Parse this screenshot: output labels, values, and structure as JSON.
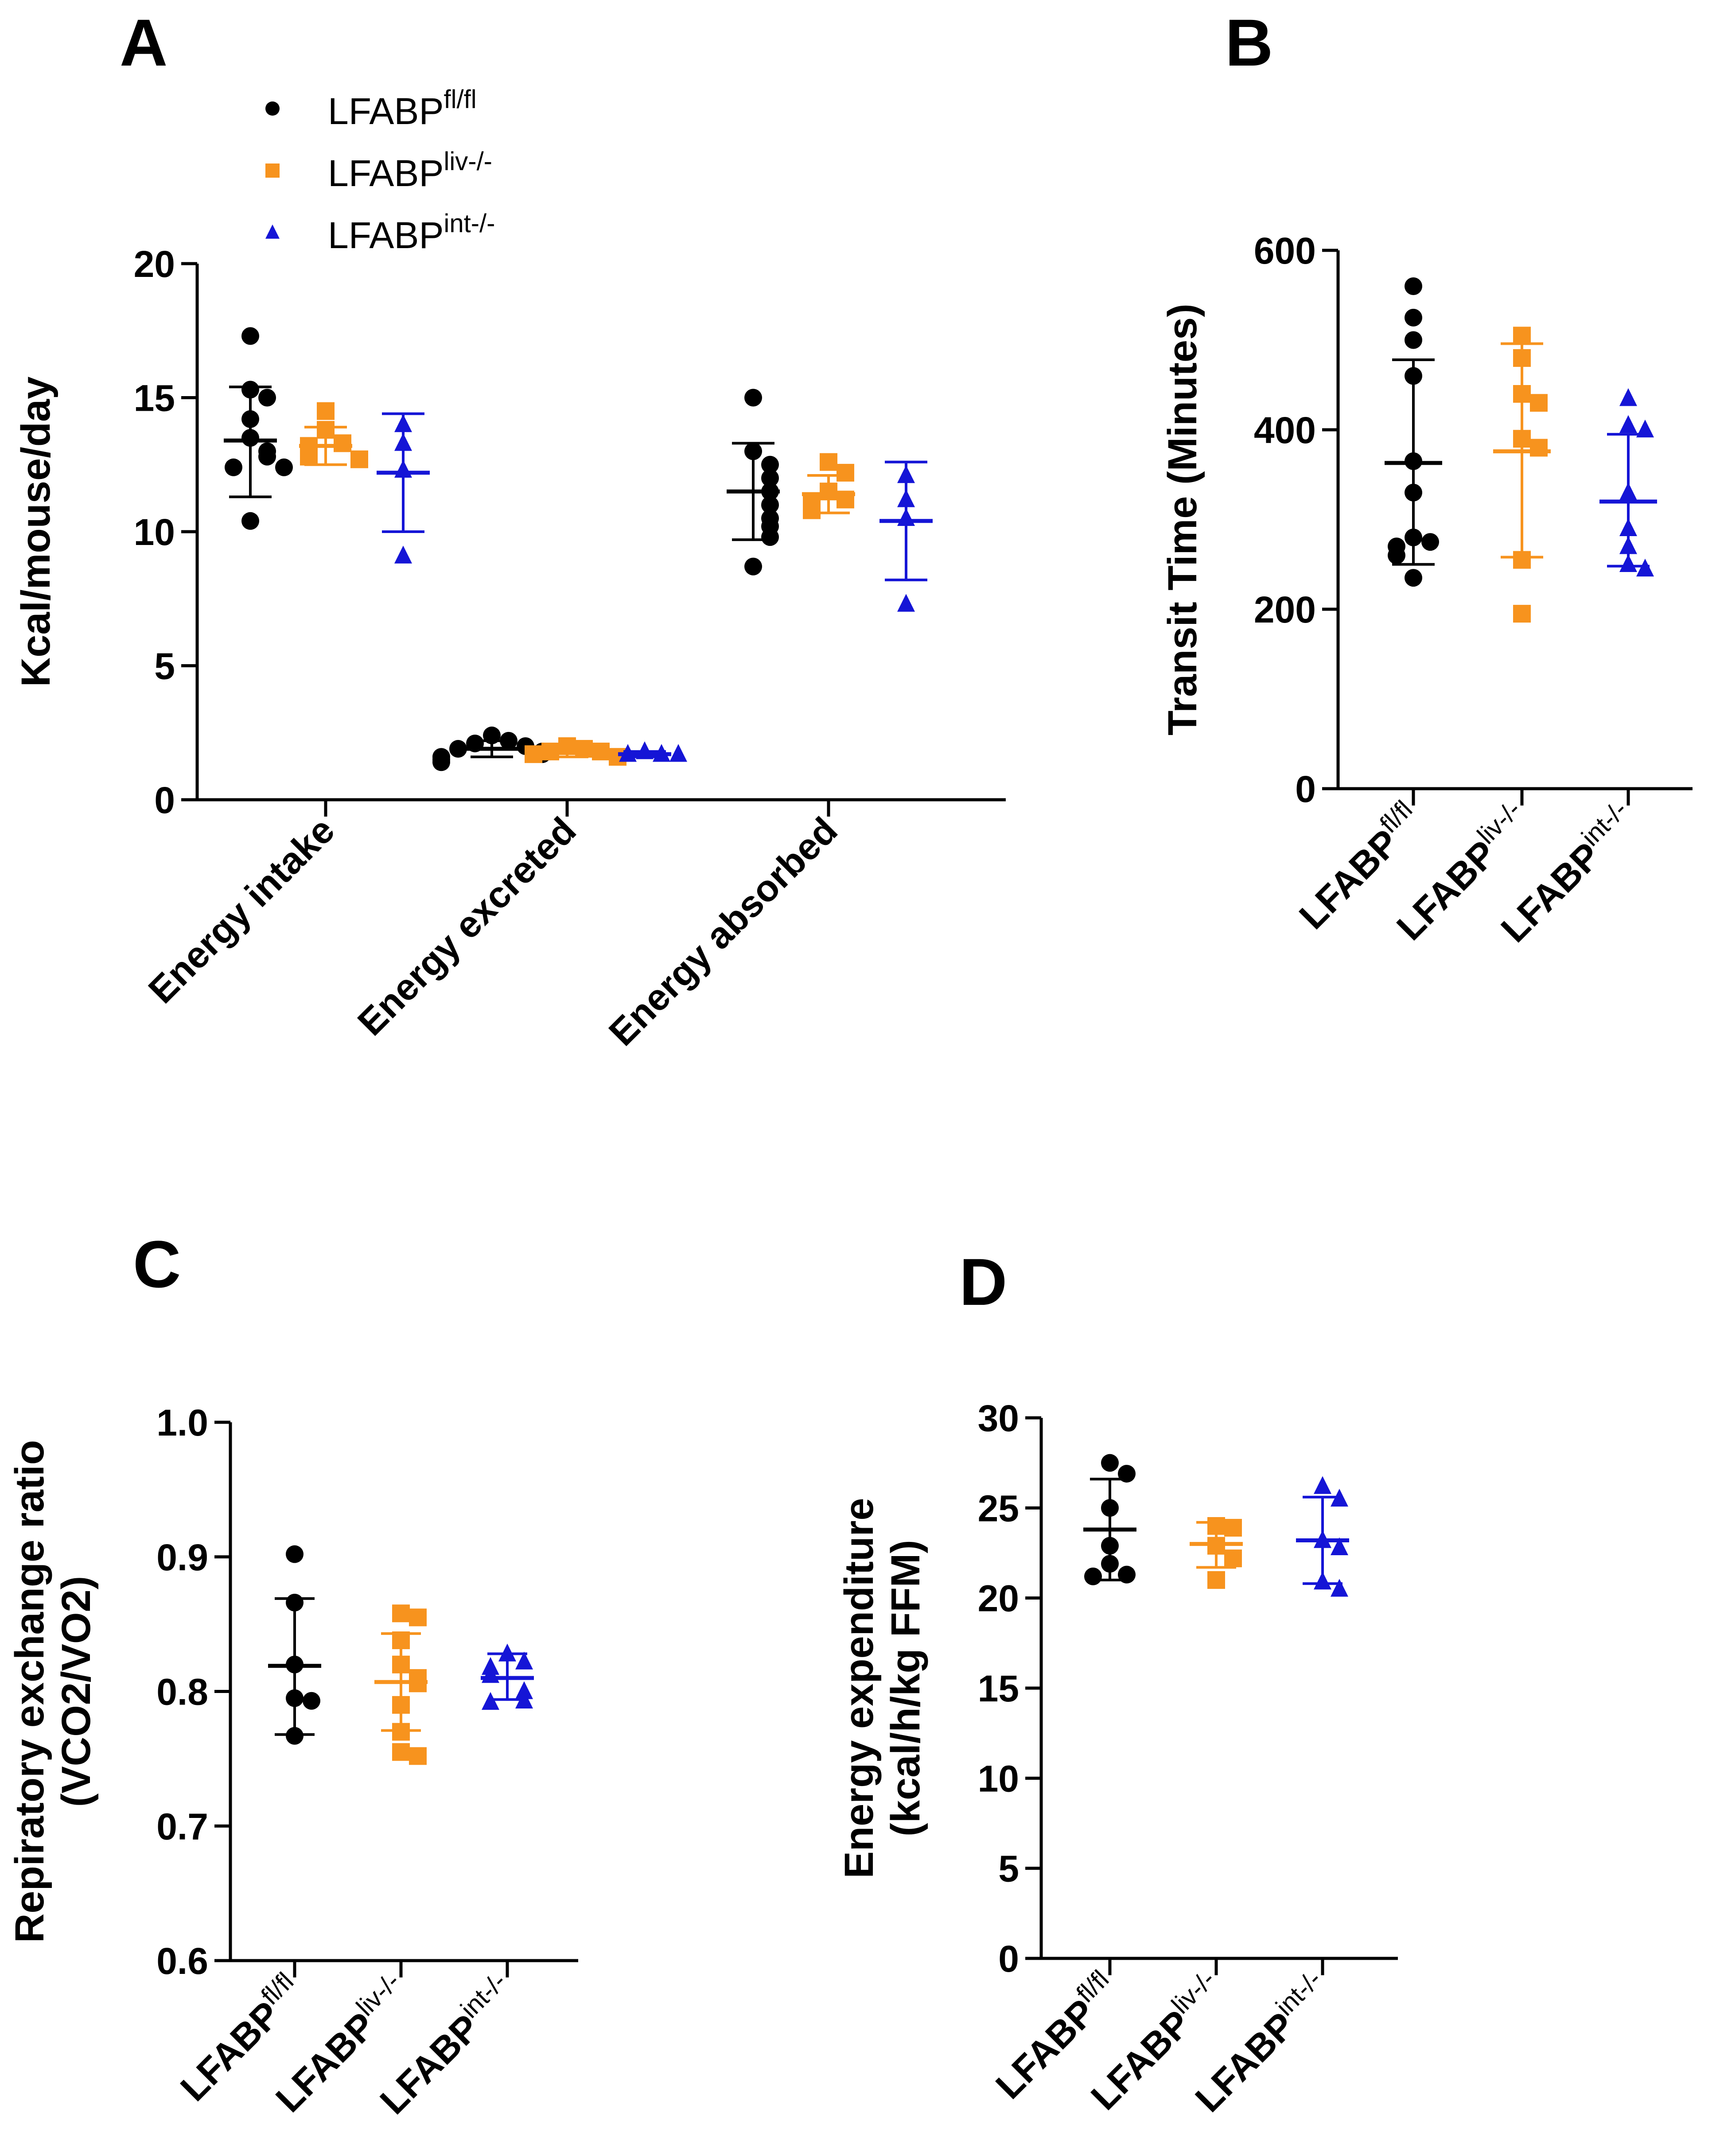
{
  "colors": {
    "fl": "#000000",
    "liv": "#F7931E",
    "int": "#1515D6",
    "axis": "#000000"
  },
  "legend": {
    "items": [
      {
        "key": "fl",
        "base": "LFABP",
        "sup": "fl/fl",
        "marker": "circle"
      },
      {
        "key": "liv",
        "base": "LFABP",
        "sup": "liv-/-",
        "marker": "square"
      },
      {
        "key": "int",
        "base": "LFABP",
        "sup": "int-/-",
        "marker": "triangle"
      }
    ]
  },
  "chart_data": [
    {
      "panel": "A",
      "type": "scatter",
      "ylabel": "Kcal/mouse/day",
      "ylim": [
        0,
        20
      ],
      "yticks": [
        0,
        5,
        10,
        15,
        20
      ],
      "categories": [
        "Energy intake",
        "Energy excreted",
        "Energy absorbed"
      ],
      "groups": [
        {
          "category": "Energy intake",
          "series": "fl",
          "mean": 13.4,
          "sd_low": 11.3,
          "sd_high": 15.4,
          "points": [
            17.3,
            15.3,
            15.0,
            14.2,
            13.5,
            13.0,
            12.8,
            12.4,
            12.4,
            10.4
          ]
        },
        {
          "category": "Energy intake",
          "series": "liv",
          "mean": 13.2,
          "sd_low": 12.5,
          "sd_high": 13.9,
          "points": [
            14.5,
            13.8,
            13.3,
            13.2,
            12.8,
            12.7
          ]
        },
        {
          "category": "Energy intake",
          "series": "int",
          "mean": 12.2,
          "sd_low": 10.0,
          "sd_high": 14.4,
          "points": [
            14.0,
            13.3,
            12.3,
            9.1
          ]
        },
        {
          "category": "Energy excreted",
          "series": "fl",
          "mean": 1.9,
          "sd_low": 1.6,
          "sd_high": 2.2,
          "points": [
            2.4,
            2.2,
            2.1,
            2.0,
            1.9,
            1.8,
            1.7,
            1.6,
            1.5,
            1.4
          ]
        },
        {
          "category": "Energy excreted",
          "series": "liv",
          "mean": 1.8,
          "sd_low": 1.6,
          "sd_high": 2.0,
          "points": [
            2.0,
            1.9,
            1.8,
            1.8,
            1.7,
            1.6
          ]
        },
        {
          "category": "Energy excreted",
          "series": "int",
          "mean": 1.7,
          "sd_low": 1.6,
          "sd_high": 1.8,
          "points": [
            1.8,
            1.7,
            1.7,
            1.7
          ]
        },
        {
          "category": "Energy absorbed",
          "series": "fl",
          "mean": 11.5,
          "sd_low": 9.7,
          "sd_high": 13.3,
          "points": [
            15.0,
            13.0,
            12.5,
            12.0,
            11.5,
            11.0,
            10.5,
            10.2,
            9.8,
            8.7
          ]
        },
        {
          "category": "Energy absorbed",
          "series": "liv",
          "mean": 11.4,
          "sd_low": 10.7,
          "sd_high": 12.1,
          "points": [
            12.6,
            12.2,
            11.5,
            11.2,
            11.0,
            10.8
          ]
        },
        {
          "category": "Energy absorbed",
          "series": "int",
          "mean": 10.4,
          "sd_low": 8.2,
          "sd_high": 12.6,
          "points": [
            12.1,
            11.2,
            10.5,
            7.3
          ]
        }
      ]
    },
    {
      "panel": "B",
      "type": "scatter",
      "ylabel": "Transit Time  (Minutes)",
      "ylim": [
        0,
        600
      ],
      "yticks": [
        0,
        200,
        400,
        600
      ],
      "categories": [
        "LFABP fl/fl",
        "LFABP liv-/-",
        "LFABP int-/-"
      ],
      "groups": [
        {
          "series": "fl",
          "mean": 363,
          "sd_low": 250,
          "sd_high": 478,
          "points": [
            560,
            525,
            500,
            460,
            365,
            330,
            280,
            275,
            270,
            260,
            235
          ]
        },
        {
          "series": "liv",
          "mean": 376,
          "sd_low": 258,
          "sd_high": 496,
          "points": [
            505,
            480,
            440,
            430,
            390,
            380,
            255,
            195
          ]
        },
        {
          "series": "int",
          "mean": 320,
          "sd_low": 248,
          "sd_high": 395,
          "points": [
            435,
            405,
            400,
            330,
            290,
            270,
            250,
            245
          ]
        }
      ]
    },
    {
      "panel": "C",
      "type": "scatter",
      "ylabel": [
        "Repiratory exchange ratio",
        "(VCO2/VO2)"
      ],
      "ylim": [
        0.6,
        1.0
      ],
      "yticks": [
        "0.6",
        "0.7",
        "0.8",
        "0.9",
        "1.0"
      ],
      "categories": [
        "LFABP fl/fl",
        "LFABP liv-/-",
        "LFABP int-/-"
      ],
      "groups": [
        {
          "series": "fl",
          "mean": 0.819,
          "sd_low": 0.768,
          "sd_high": 0.869,
          "points": [
            0.902,
            0.866,
            0.82,
            0.795,
            0.793,
            0.767
          ]
        },
        {
          "series": "liv",
          "mean": 0.807,
          "sd_low": 0.771,
          "sd_high": 0.843,
          "points": [
            0.858,
            0.855,
            0.838,
            0.82,
            0.81,
            0.806,
            0.79,
            0.77,
            0.755,
            0.752
          ]
        },
        {
          "series": "int",
          "mean": 0.81,
          "sd_low": 0.794,
          "sd_high": 0.828,
          "points": [
            0.828,
            0.822,
            0.818,
            0.812,
            0.8,
            0.793,
            0.792
          ]
        }
      ]
    },
    {
      "panel": "D",
      "type": "scatter",
      "ylabel": [
        "Energy expenditure",
        "(kcal/h/kg FFM)"
      ],
      "ylim": [
        0,
        30
      ],
      "yticks": [
        0,
        5,
        10,
        15,
        20,
        25,
        30
      ],
      "categories": [
        "LFABP fl/fl",
        "LFABP liv-/-",
        "LFABP int-/-"
      ],
      "groups": [
        {
          "series": "fl",
          "mean": 23.8,
          "sd_low": 21.0,
          "sd_high": 26.6,
          "points": [
            27.5,
            26.9,
            25.0,
            22.9,
            21.9,
            21.3,
            21.2
          ]
        },
        {
          "series": "liv",
          "mean": 23.0,
          "sd_low": 21.7,
          "sd_high": 24.2,
          "points": [
            24.0,
            23.9,
            22.9,
            22.2,
            21.0
          ]
        },
        {
          "series": "int",
          "mean": 23.2,
          "sd_low": 20.8,
          "sd_high": 25.6,
          "points": [
            26.2,
            25.5,
            23.2,
            22.8,
            20.9,
            20.5
          ]
        }
      ]
    }
  ]
}
